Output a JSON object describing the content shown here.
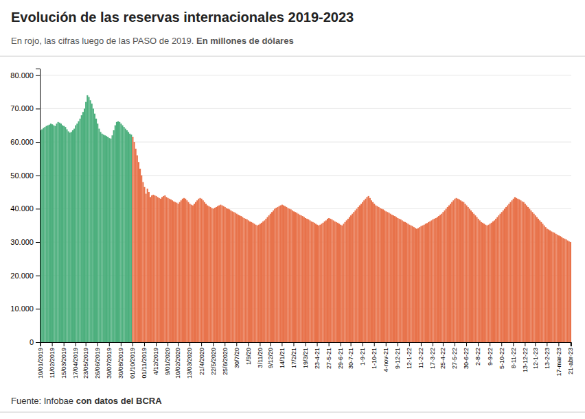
{
  "chart_data": {
    "type": "bar",
    "title": "Evolución de las reservas internacionales 2019-2023",
    "subtitle": [
      "En rojo, las cifras luego de las PASO de 2019. ",
      "En millones de dólares"
    ],
    "annotations": [
      "Fuente: Infobae ",
      "con datos del BCRA"
    ],
    "categories": [
      "10/01/2019",
      null,
      null,
      null,
      null,
      null,
      null,
      null,
      "11/02/2019",
      null,
      null,
      null,
      null,
      null,
      null,
      null,
      "15/03/2019",
      null,
      null,
      null,
      null,
      null,
      null,
      null,
      "17/04/2019",
      null,
      null,
      null,
      null,
      null,
      null,
      "23/05/2019",
      null,
      null,
      null,
      null,
      null,
      null,
      null,
      "26/06/2019",
      null,
      null,
      null,
      null,
      null,
      null,
      null,
      "30/07/2019",
      null,
      null,
      null,
      null,
      null,
      null,
      null,
      "30/08/2019",
      null,
      null,
      null,
      null,
      null,
      null,
      null,
      "01/10/2019",
      null,
      null,
      null,
      null,
      null,
      null,
      null,
      "01/11/2019",
      null,
      null,
      null,
      null,
      null,
      null,
      null,
      "4/12/2019",
      null,
      null,
      null,
      null,
      null,
      null,
      null,
      "9/01/2020",
      null,
      null,
      null,
      null,
      null,
      null,
      "10/02/2020",
      null,
      null,
      null,
      null,
      null,
      null,
      null,
      "13/03/2020",
      null,
      null,
      null,
      null,
      null,
      null,
      null,
      "21/4/2020",
      null,
      null,
      null,
      null,
      null,
      null,
      null,
      "22/5/2020",
      null,
      null,
      null,
      null,
      null,
      null,
      null,
      "25/6/2020",
      null,
      null,
      null,
      null,
      null,
      null,
      null,
      "30/7/20",
      null,
      null,
      null,
      null,
      null,
      null,
      null,
      "1/9/20",
      null,
      null,
      null,
      null,
      null,
      null,
      null,
      "3/11/20",
      null,
      null,
      null,
      null,
      null,
      null,
      "9/12/20",
      null,
      null,
      null,
      null,
      null,
      null,
      null,
      "14/1/21",
      null,
      null,
      null,
      null,
      null,
      null,
      null,
      "17/2/21",
      null,
      null,
      null,
      null,
      null,
      null,
      null,
      "19/3/21",
      null,
      null,
      null,
      null,
      null,
      null,
      null,
      "23-4-21",
      null,
      null,
      null,
      null,
      null,
      null,
      null,
      "27-5-21",
      null,
      null,
      null,
      null,
      null,
      null,
      null,
      "29-6-21",
      null,
      null,
      null,
      null,
      null,
      null,
      "30-7-21",
      null,
      null,
      null,
      null,
      null,
      null,
      null,
      "1-9-21",
      null,
      null,
      null,
      null,
      null,
      null,
      null,
      "1-10-21",
      null,
      null,
      null,
      null,
      null,
      null,
      null,
      "4-nov-21",
      null,
      null,
      null,
      null,
      null,
      null,
      null,
      "9-12-21",
      null,
      null,
      null,
      null,
      null,
      null,
      null,
      "12-1-22",
      null,
      null,
      null,
      null,
      null,
      null,
      null,
      "11-2-22",
      null,
      null,
      null,
      null,
      null,
      null,
      null,
      "17-3-22",
      null,
      null,
      null,
      null,
      null,
      null,
      "25-4-22",
      null,
      null,
      null,
      null,
      null,
      null,
      null,
      "27-5-22",
      null,
      null,
      null,
      null,
      null,
      null,
      null,
      "30-6-22",
      null,
      null,
      null,
      null,
      null,
      null,
      null,
      "2-8-22",
      null,
      null,
      null,
      null,
      null,
      null,
      null,
      "9-9-22",
      null,
      null,
      null,
      null,
      null,
      null,
      null,
      "5-10-22",
      null,
      null,
      null,
      null,
      null,
      null,
      null,
      "8-11-22",
      null,
      null,
      null,
      null,
      null,
      null,
      null,
      "13-12-22",
      null,
      null,
      null,
      null,
      null,
      null,
      "12-1-23",
      null,
      null,
      null,
      null,
      null,
      null,
      null,
      "13-2-23",
      null,
      null,
      null,
      null,
      null,
      null,
      null,
      "17-mar-23",
      null,
      null,
      null,
      null,
      null,
      null,
      null,
      "21-abr-23"
    ],
    "series": [
      {
        "color": "#4CAF7D",
        "values": [
          63500,
          63800,
          64200,
          64500,
          64800,
          65000,
          65200,
          65500,
          65300,
          65000,
          64800,
          65500,
          66000,
          65800,
          65500,
          65000,
          64800,
          64500,
          63800,
          63200,
          62800,
          63000,
          63500,
          64000,
          65000,
          65500,
          66200,
          67000,
          68000,
          69000,
          70000,
          72000,
          74000,
          73500,
          72500,
          71500,
          70000,
          68500,
          67000,
          65500,
          64000,
          63000,
          62500,
          62200,
          62000,
          61800,
          61500,
          61200,
          61000,
          62000,
          63500,
          65000,
          66000,
          66200,
          66000,
          65500,
          65000,
          64500,
          64000,
          63500,
          63000,
          62500,
          62200,
          null,
          null,
          null,
          null,
          null,
          null,
          null,
          null,
          null,
          null,
          null,
          null,
          null,
          null,
          null,
          null,
          null,
          null,
          null,
          null,
          null,
          null,
          null,
          null,
          null,
          null,
          null,
          null,
          null,
          null,
          null,
          null,
          null,
          null,
          null,
          null,
          null,
          null,
          null,
          null,
          null,
          null,
          null,
          null,
          null,
          null,
          null,
          null,
          null,
          null,
          null,
          null,
          null,
          null,
          null,
          null,
          null,
          null,
          null,
          null,
          null,
          null,
          null,
          null,
          null,
          null,
          null,
          null,
          null,
          null,
          null,
          null,
          null,
          null,
          null,
          null,
          null,
          null,
          null,
          null,
          null,
          null,
          null,
          null,
          null,
          null,
          null,
          null,
          null,
          null,
          null,
          null,
          null,
          null,
          null,
          null,
          null,
          null,
          null,
          null,
          null,
          null,
          null,
          null,
          null,
          null,
          null,
          null,
          null,
          null,
          null,
          null,
          null,
          null,
          null,
          null,
          null,
          null,
          null,
          null,
          null,
          null,
          null,
          null,
          null,
          null,
          null,
          null,
          null,
          null,
          null,
          null,
          null,
          null,
          null,
          null,
          null,
          null,
          null,
          null,
          null,
          null,
          null,
          null,
          null,
          null,
          null,
          null,
          null,
          null,
          null,
          null,
          null,
          null,
          null,
          null,
          null,
          null,
          null,
          null,
          null,
          null,
          null,
          null,
          null,
          null,
          null,
          null,
          null,
          null,
          null,
          null,
          null,
          null,
          null,
          null,
          null,
          null,
          null,
          null,
          null,
          null,
          null,
          null,
          null,
          null,
          null,
          null,
          null,
          null,
          null,
          null,
          null,
          null,
          null,
          null,
          null,
          null,
          null,
          null,
          null,
          null,
          null,
          null,
          null,
          null,
          null,
          null,
          null,
          null,
          null,
          null,
          null,
          null,
          null,
          null,
          null,
          null,
          null,
          null,
          null,
          null,
          null,
          null,
          null,
          null,
          null,
          null,
          null,
          null,
          null,
          null,
          null,
          null,
          null,
          null,
          null,
          null,
          null,
          null,
          null,
          null,
          null,
          null,
          null,
          null,
          null,
          null,
          null,
          null,
          null,
          null,
          null,
          null,
          null,
          null,
          null,
          null,
          null,
          null,
          null,
          null,
          null,
          null,
          null,
          null,
          null,
          null,
          null,
          null,
          null,
          null,
          null,
          null,
          null,
          null,
          null,
          null,
          null,
          null,
          null,
          null,
          null,
          null,
          null,
          null,
          null,
          null,
          null,
          null,
          null,
          null,
          null,
          null,
          null,
          null,
          null,
          null,
          null,
          null
        ]
      },
      {
        "color": "#E8724A",
        "values": [
          null,
          null,
          null,
          null,
          null,
          null,
          null,
          null,
          null,
          null,
          null,
          null,
          null,
          null,
          null,
          null,
          null,
          null,
          null,
          null,
          null,
          null,
          null,
          null,
          null,
          null,
          null,
          null,
          null,
          null,
          null,
          null,
          null,
          null,
          null,
          null,
          null,
          null,
          null,
          null,
          null,
          null,
          null,
          null,
          null,
          null,
          null,
          null,
          null,
          null,
          null,
          null,
          null,
          null,
          null,
          null,
          null,
          null,
          null,
          null,
          null,
          null,
          null,
          61500,
          60000,
          58000,
          56000,
          54000,
          52000,
          50000,
          48000,
          46500,
          44500,
          46000,
          45000,
          43500,
          44000,
          44200,
          44000,
          43800,
          43500,
          43200,
          43000,
          43500,
          43800,
          44000,
          43500,
          43200,
          43000,
          42800,
          42500,
          42200,
          42000,
          41800,
          41500,
          42000,
          42500,
          43000,
          43200,
          43000,
          42500,
          42000,
          41500,
          41200,
          41000,
          41500,
          42000,
          42500,
          43000,
          43200,
          43000,
          42500,
          42000,
          41500,
          41000,
          40800,
          40500,
          40200,
          40000,
          40300,
          40500,
          40800,
          41000,
          41200,
          41000,
          40800,
          40500,
          40200,
          40000,
          39800,
          39500,
          39200,
          39000,
          38800,
          38500,
          38200,
          38000,
          37800,
          37500,
          37200,
          37000,
          36800,
          36500,
          36200,
          36000,
          35800,
          35500,
          35200,
          35000,
          35200,
          35500,
          35800,
          36200,
          36500,
          37000,
          37500,
          38000,
          38500,
          39000,
          39500,
          40000,
          40300,
          40500,
          40800,
          41000,
          41200,
          41000,
          40800,
          40500,
          40200,
          40000,
          39800,
          39500,
          39200,
          39000,
          38800,
          38500,
          38200,
          38000,
          37800,
          37500,
          37200,
          37000,
          36800,
          36500,
          36200,
          36000,
          35800,
          35500,
          35200,
          35000,
          35200,
          35500,
          35800,
          36200,
          36500,
          37000,
          37200,
          37000,
          36800,
          36500,
          36200,
          36000,
          35800,
          35500,
          35200,
          35000,
          35500,
          36000,
          36500,
          37000,
          37500,
          38000,
          38500,
          39000,
          39500,
          40000,
          40500,
          41000,
          41500,
          42000,
          42500,
          43000,
          43500,
          43800,
          43200,
          42500,
          42000,
          41500,
          41000,
          40800,
          40500,
          40200,
          40000,
          39800,
          39500,
          39200,
          39000,
          38800,
          38500,
          38200,
          38000,
          37800,
          37500,
          37200,
          37000,
          36800,
          36500,
          36200,
          36000,
          35800,
          35500,
          35200,
          35000,
          34800,
          34500,
          34200,
          34000,
          34200,
          34500,
          34800,
          35000,
          35200,
          35500,
          35700,
          36000,
          36200,
          36500,
          36800,
          37000,
          37200,
          37500,
          37800,
          38200,
          38500,
          39000,
          39500,
          40000,
          40500,
          41000,
          41500,
          42000,
          42500,
          43000,
          43200,
          43000,
          42800,
          42500,
          42200,
          42000,
          41500,
          41000,
          40500,
          40000,
          39500,
          39000,
          38500,
          38000,
          37500,
          37000,
          36500,
          36000,
          35800,
          35500,
          35200,
          35000,
          35200,
          35500,
          35800,
          36200,
          36500,
          37000,
          37500,
          38000,
          38500,
          39000,
          39500,
          40000,
          40500,
          41000,
          41500,
          42000,
          42500,
          43000,
          43500,
          43200,
          43000,
          42800,
          42500,
          42200,
          42000,
          41500,
          41000,
          40500,
          40000,
          39500,
          39000,
          38500,
          38000,
          37500,
          37000,
          36500,
          36000,
          35500,
          35000,
          34500,
          34000,
          33800,
          33500,
          33200,
          33000,
          32800,
          32500,
          32200,
          32000,
          31800,
          31500,
          31200,
          31000,
          30800,
          30500,
          30200,
          30000
        ]
      }
    ],
    "ylim": [
      0,
      82000
    ],
    "yticks": [
      0,
      {
        "value": 10000,
        "label": "10.000"
      },
      {
        "value": 20000,
        "label": "20.000"
      },
      {
        "value": 30000,
        "label": "30.000"
      },
      {
        "value": 40000,
        "label": "40.000"
      },
      {
        "value": 50000,
        "label": "50.000"
      },
      {
        "value": 60000,
        "label": "60.000"
      },
      {
        "value": 70000,
        "label": "70.000"
      },
      {
        "value": 80000,
        "label": "80.000"
      }
    ],
    "grid": true
  }
}
